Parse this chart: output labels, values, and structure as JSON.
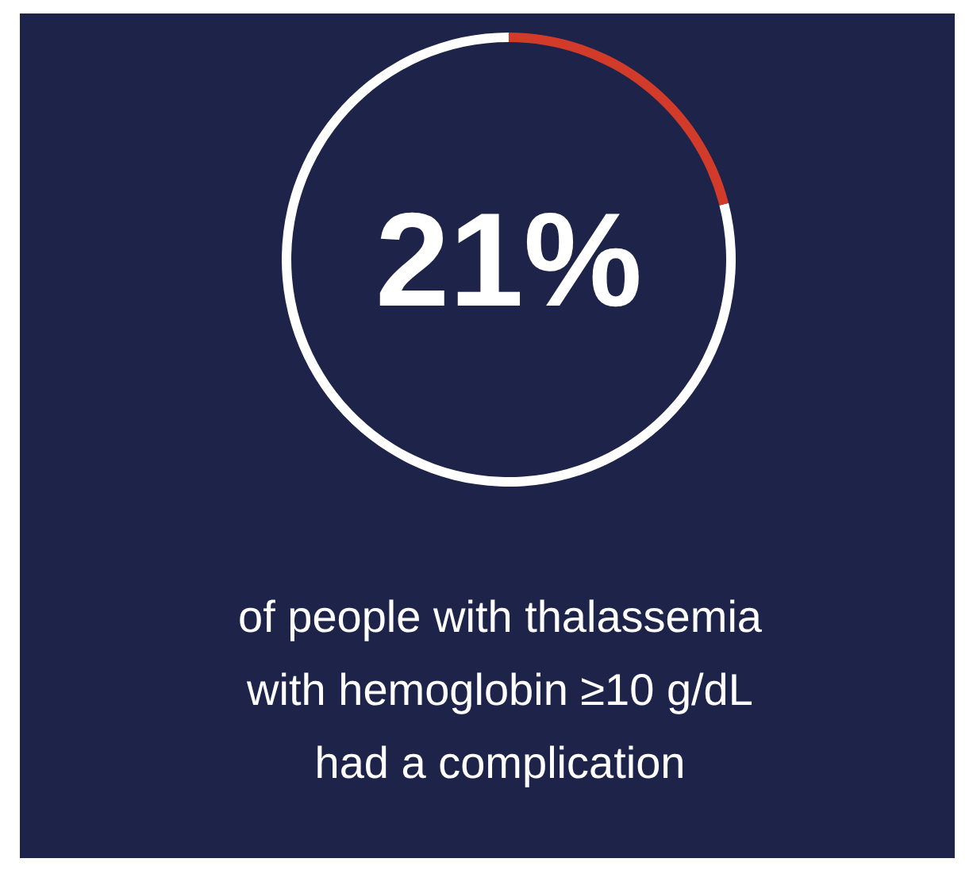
{
  "chart_data": {
    "type": "donut",
    "categories": [
      null,
      null
    ],
    "values": [
      21,
      79
    ],
    "colors": [
      "#d23b2a",
      "#ffffff"
    ],
    "title": "21%",
    "annotations": [
      "of people with thalassemia",
      "with hemoglobin ≥10 g/dL",
      "had a complication"
    ]
  }
}
